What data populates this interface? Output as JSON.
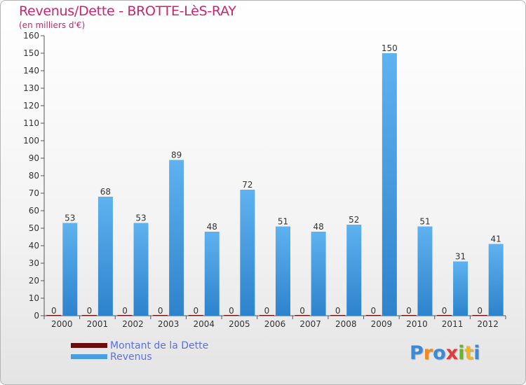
{
  "title": "Revenus/Dette - BROTTE-LèS-RAY",
  "subtitle": "(en milliers d'€)",
  "colors": {
    "title": "#c7266e",
    "revenus": "#4a9fe0",
    "dette": "#6b0c0c",
    "legend_text": "#5a6fe8"
  },
  "chart_data": {
    "type": "bar",
    "categories": [
      "2000",
      "2001",
      "2002",
      "2003",
      "2004",
      "2005",
      "2006",
      "2007",
      "2008",
      "2009",
      "2010",
      "2011",
      "2012"
    ],
    "series": [
      {
        "name": "Montant de la Dette",
        "values": [
          0,
          0,
          0,
          0,
          0,
          0,
          0,
          0,
          0,
          0,
          0,
          0,
          0
        ]
      },
      {
        "name": "Revenus",
        "values": [
          53,
          68,
          53,
          89,
          48,
          72,
          51,
          48,
          52,
          150,
          51,
          31,
          41
        ]
      }
    ],
    "ylim": [
      0,
      160
    ],
    "yticks": [
      0,
      10,
      20,
      30,
      40,
      50,
      60,
      70,
      80,
      90,
      100,
      110,
      120,
      130,
      140,
      150,
      160
    ],
    "grid": false,
    "legend": "bottom-left"
  },
  "legend": {
    "items": [
      {
        "label": "Montant de la Dette",
        "color": "#6b0c0c"
      },
      {
        "label": "Revenus",
        "color": "#4a9fe0"
      }
    ]
  },
  "logo": {
    "letters": [
      "P",
      "r",
      "o",
      "x",
      "i",
      "t",
      "i"
    ],
    "colors": [
      "#3b8ad8",
      "#f08a1c",
      "#3b8ad8",
      "#e23b3b",
      "#66b821",
      "#f0b41c",
      "#3b8ad8"
    ]
  }
}
